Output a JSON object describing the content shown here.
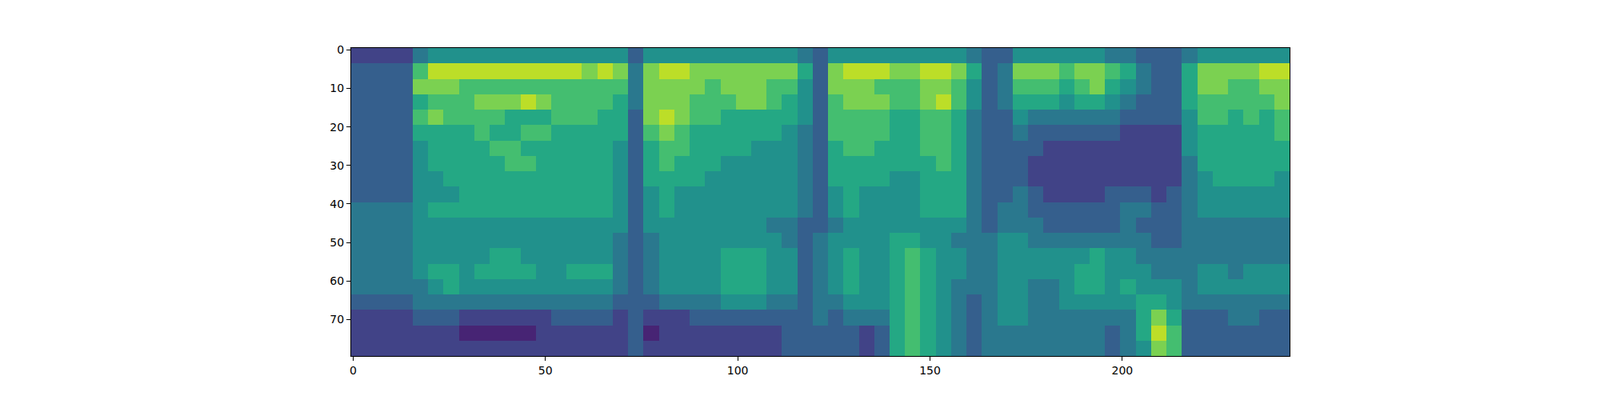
{
  "chart_data": {
    "type": "heatmap",
    "color": "Viridis",
    "color_range": [
      0,
      10
    ],
    "xlim": [
      -0.5,
      243.5
    ],
    "xticks": [
      0,
      50,
      100,
      150,
      200
    ],
    "ylim": [
      79.5,
      -0.5
    ],
    "yticks": [
      0,
      10,
      20,
      30,
      40,
      50,
      60,
      70
    ],
    "x": [
      1.5,
      5.5,
      9.5,
      13.5,
      17.5,
      21.5,
      25.5,
      29.5,
      33.5,
      37.5,
      41.5,
      45.5,
      49.5,
      53.5,
      57.5,
      61.5,
      65.5,
      69.5,
      73.5,
      77.5,
      81.5,
      85.5,
      89.5,
      93.5,
      97.5,
      101.5,
      105.5,
      109.5,
      113.5,
      117.5,
      121.5,
      125.5,
      129.5,
      133.5,
      137.5,
      141.5,
      145.5,
      149.5,
      153.5,
      157.5,
      161.5,
      165.5,
      169.5,
      173.5,
      177.5,
      181.5,
      185.5,
      189.5,
      193.5,
      197.5,
      201.5,
      205.5,
      209.5,
      213.5,
      217.5,
      221.5,
      225.5,
      229.5,
      233.5,
      237.5,
      241.5
    ],
    "y": [
      1.5,
      5.5,
      9.5,
      13.5,
      17.5,
      21.5,
      25.5,
      29.5,
      33.5,
      37.5,
      41.5,
      45.5,
      49.5,
      53.5,
      57.5,
      61.5,
      65.5,
      69.5,
      73.5,
      77.5
    ],
    "cells": [
      [
        2,
        2,
        2,
        2,
        4,
        5,
        5,
        5,
        5,
        5,
        5,
        5,
        5,
        5,
        5,
        5,
        5,
        5,
        3,
        5,
        5,
        5,
        5,
        5,
        5,
        5,
        5,
        5,
        5,
        4,
        3,
        5,
        5,
        5,
        5,
        5,
        5,
        5,
        5,
        5,
        4,
        3,
        3,
        5,
        5,
        5,
        5,
        5,
        5,
        4,
        4,
        3,
        3,
        3,
        4,
        5,
        5,
        5,
        5,
        5,
        5
      ],
      [
        3,
        3,
        3,
        3,
        7,
        9,
        9,
        9,
        9,
        9,
        9,
        9,
        9,
        9,
        9,
        8,
        9,
        8,
        4,
        8,
        9,
        9,
        8,
        8,
        8,
        8,
        8,
        8,
        8,
        6,
        3,
        8,
        9,
        9,
        9,
        8,
        8,
        9,
        9,
        8,
        6,
        3,
        4,
        8,
        8,
        8,
        7,
        8,
        8,
        7,
        6,
        4,
        3,
        3,
        6,
        8,
        8,
        8,
        8,
        9,
        9
      ],
      [
        3,
        3,
        3,
        3,
        8,
        8,
        8,
        7,
        7,
        7,
        7,
        7,
        7,
        7,
        7,
        7,
        7,
        7,
        4,
        8,
        8,
        8,
        8,
        7,
        8,
        8,
        8,
        7,
        7,
        5,
        3,
        8,
        8,
        8,
        7,
        7,
        7,
        8,
        8,
        7,
        5,
        3,
        4,
        7,
        7,
        7,
        6,
        7,
        8,
        6,
        5,
        4,
        3,
        3,
        6,
        8,
        8,
        7,
        7,
        8,
        8
      ],
      [
        3,
        3,
        3,
        3,
        6,
        7,
        7,
        7,
        8,
        8,
        8,
        9,
        8,
        7,
        7,
        7,
        7,
        6,
        4,
        8,
        8,
        8,
        7,
        7,
        7,
        8,
        8,
        7,
        6,
        5,
        3,
        7,
        8,
        8,
        8,
        7,
        7,
        8,
        9,
        7,
        5,
        3,
        4,
        6,
        6,
        6,
        5,
        6,
        6,
        5,
        4,
        3,
        3,
        3,
        6,
        7,
        7,
        7,
        7,
        7,
        8
      ],
      [
        3,
        3,
        3,
        3,
        7,
        8,
        7,
        7,
        7,
        7,
        6,
        6,
        6,
        7,
        7,
        7,
        6,
        6,
        3,
        8,
        9,
        8,
        7,
        7,
        6,
        6,
        6,
        6,
        6,
        5,
        3,
        7,
        7,
        7,
        7,
        6,
        6,
        7,
        7,
        6,
        4,
        3,
        3,
        5,
        4,
        4,
        4,
        4,
        4,
        4,
        3,
        3,
        3,
        3,
        5,
        7,
        7,
        6,
        7,
        6,
        7
      ],
      [
        3,
        3,
        3,
        3,
        6,
        6,
        6,
        6,
        7,
        6,
        6,
        7,
        7,
        6,
        6,
        6,
        6,
        6,
        3,
        7,
        8,
        7,
        6,
        6,
        6,
        6,
        6,
        6,
        5,
        4,
        3,
        7,
        7,
        7,
        7,
        6,
        6,
        7,
        7,
        6,
        4,
        3,
        3,
        4,
        3,
        3,
        3,
        3,
        3,
        3,
        2,
        2,
        2,
        2,
        5,
        6,
        6,
        6,
        6,
        6,
        7
      ],
      [
        3,
        3,
        3,
        3,
        5,
        6,
        6,
        6,
        6,
        7,
        7,
        6,
        6,
        6,
        6,
        6,
        6,
        5,
        3,
        6,
        7,
        7,
        6,
        6,
        6,
        6,
        5,
        5,
        5,
        4,
        3,
        6,
        7,
        7,
        6,
        6,
        6,
        7,
        7,
        6,
        4,
        3,
        3,
        3,
        3,
        2,
        2,
        2,
        2,
        2,
        2,
        2,
        2,
        2,
        5,
        6,
        6,
        6,
        6,
        6,
        6
      ],
      [
        3,
        3,
        3,
        3,
        5,
        6,
        6,
        6,
        6,
        6,
        7,
        7,
        6,
        6,
        6,
        6,
        6,
        5,
        3,
        6,
        7,
        6,
        6,
        6,
        5,
        5,
        5,
        5,
        5,
        4,
        3,
        6,
        6,
        6,
        6,
        6,
        6,
        6,
        7,
        6,
        4,
        3,
        3,
        3,
        2,
        2,
        2,
        2,
        2,
        2,
        2,
        2,
        2,
        2,
        4,
        6,
        6,
        6,
        6,
        6,
        6
      ],
      [
        3,
        3,
        3,
        3,
        5,
        5,
        6,
        6,
        6,
        6,
        6,
        6,
        6,
        6,
        6,
        6,
        6,
        5,
        3,
        6,
        6,
        6,
        6,
        5,
        5,
        5,
        5,
        5,
        5,
        4,
        3,
        6,
        6,
        6,
        6,
        5,
        5,
        6,
        6,
        6,
        4,
        3,
        3,
        3,
        2,
        2,
        2,
        2,
        2,
        2,
        2,
        2,
        2,
        2,
        4,
        5,
        6,
        6,
        6,
        6,
        5
      ],
      [
        3,
        3,
        3,
        3,
        5,
        5,
        5,
        6,
        6,
        6,
        6,
        6,
        6,
        6,
        6,
        6,
        6,
        5,
        3,
        5,
        6,
        5,
        5,
        5,
        5,
        5,
        5,
        5,
        5,
        4,
        3,
        5,
        6,
        5,
        5,
        5,
        5,
        6,
        6,
        6,
        4,
        3,
        3,
        4,
        3,
        2,
        2,
        2,
        2,
        3,
        3,
        3,
        2,
        3,
        4,
        5,
        5,
        5,
        5,
        5,
        5
      ],
      [
        4,
        4,
        4,
        4,
        5,
        6,
        6,
        6,
        6,
        6,
        6,
        6,
        6,
        6,
        6,
        6,
        6,
        5,
        3,
        5,
        6,
        5,
        5,
        5,
        5,
        5,
        5,
        5,
        5,
        4,
        3,
        5,
        6,
        5,
        5,
        5,
        5,
        6,
        6,
        6,
        4,
        3,
        4,
        4,
        3,
        3,
        3,
        3,
        3,
        3,
        4,
        4,
        3,
        3,
        4,
        5,
        5,
        5,
        5,
        5,
        5
      ],
      [
        4,
        4,
        4,
        4,
        5,
        5,
        5,
        5,
        5,
        5,
        5,
        5,
        5,
        5,
        5,
        5,
        5,
        5,
        3,
        5,
        5,
        5,
        5,
        5,
        5,
        5,
        5,
        4,
        4,
        3,
        3,
        4,
        5,
        5,
        5,
        5,
        5,
        5,
        5,
        5,
        4,
        3,
        4,
        4,
        4,
        3,
        3,
        3,
        3,
        3,
        4,
        3,
        3,
        3,
        4,
        4,
        4,
        4,
        4,
        4,
        4
      ],
      [
        4,
        4,
        4,
        4,
        5,
        5,
        5,
        5,
        5,
        5,
        5,
        5,
        5,
        5,
        5,
        5,
        5,
        4,
        3,
        4,
        5,
        5,
        5,
        5,
        5,
        5,
        5,
        5,
        4,
        3,
        4,
        5,
        5,
        5,
        5,
        6,
        6,
        5,
        5,
        4,
        4,
        4,
        5,
        5,
        4,
        4,
        4,
        4,
        4,
        4,
        4,
        4,
        3,
        3,
        4,
        4,
        4,
        4,
        4,
        4,
        4
      ],
      [
        4,
        4,
        4,
        4,
        5,
        5,
        5,
        5,
        5,
        6,
        6,
        5,
        5,
        5,
        5,
        5,
        5,
        4,
        3,
        4,
        5,
        5,
        5,
        5,
        6,
        6,
        6,
        5,
        5,
        3,
        4,
        5,
        6,
        5,
        5,
        6,
        7,
        6,
        5,
        5,
        4,
        4,
        5,
        5,
        5,
        5,
        5,
        5,
        6,
        5,
        5,
        4,
        4,
        4,
        4,
        4,
        4,
        4,
        4,
        4,
        4
      ],
      [
        4,
        4,
        4,
        4,
        5,
        6,
        6,
        5,
        6,
        6,
        6,
        6,
        5,
        5,
        6,
        6,
        6,
        4,
        3,
        4,
        5,
        5,
        5,
        5,
        6,
        6,
        6,
        5,
        5,
        3,
        4,
        5,
        6,
        5,
        5,
        6,
        7,
        6,
        5,
        5,
        4,
        4,
        5,
        5,
        5,
        5,
        5,
        6,
        6,
        5,
        5,
        5,
        4,
        4,
        4,
        5,
        5,
        4,
        5,
        5,
        5
      ],
      [
        4,
        4,
        4,
        4,
        4,
        5,
        6,
        5,
        5,
        5,
        5,
        5,
        5,
        5,
        5,
        5,
        5,
        4,
        3,
        4,
        5,
        5,
        5,
        5,
        6,
        6,
        6,
        5,
        5,
        3,
        4,
        5,
        6,
        5,
        5,
        6,
        7,
        6,
        5,
        4,
        4,
        4,
        5,
        5,
        4,
        4,
        5,
        6,
        6,
        5,
        6,
        5,
        5,
        5,
        4,
        5,
        5,
        5,
        5,
        5,
        5
      ],
      [
        3,
        3,
        3,
        3,
        4,
        4,
        4,
        4,
        4,
        4,
        4,
        4,
        4,
        4,
        4,
        4,
        4,
        3,
        3,
        3,
        4,
        4,
        4,
        4,
        5,
        5,
        5,
        4,
        4,
        3,
        4,
        4,
        5,
        5,
        5,
        6,
        7,
        6,
        5,
        4,
        3,
        4,
        5,
        5,
        4,
        4,
        5,
        5,
        5,
        5,
        5,
        6,
        6,
        5,
        4,
        4,
        4,
        4,
        4,
        4,
        4
      ],
      [
        2,
        2,
        2,
        2,
        3,
        3,
        3,
        2,
        2,
        2,
        2,
        2,
        2,
        3,
        3,
        3,
        3,
        2,
        3,
        2,
        2,
        2,
        3,
        3,
        3,
        3,
        3,
        3,
        3,
        3,
        4,
        3,
        4,
        4,
        4,
        6,
        7,
        6,
        5,
        4,
        3,
        4,
        5,
        5,
        4,
        4,
        4,
        4,
        4,
        4,
        4,
        6,
        8,
        6,
        3,
        3,
        3,
        4,
        4,
        3,
        3
      ],
      [
        2,
        2,
        2,
        2,
        2,
        2,
        2,
        1,
        1,
        1,
        1,
        1,
        2,
        2,
        2,
        2,
        2,
        2,
        3,
        1,
        2,
        2,
        2,
        2,
        2,
        2,
        2,
        2,
        3,
        3,
        3,
        3,
        3,
        2,
        3,
        6,
        7,
        6,
        5,
        4,
        3,
        4,
        4,
        4,
        4,
        4,
        4,
        4,
        4,
        3,
        4,
        6,
        9,
        7,
        3,
        3,
        3,
        3,
        3,
        3,
        3
      ],
      [
        2,
        2,
        2,
        2,
        2,
        2,
        2,
        2,
        2,
        2,
        2,
        2,
        2,
        2,
        2,
        2,
        2,
        2,
        3,
        2,
        2,
        2,
        2,
        2,
        2,
        2,
        2,
        2,
        3,
        3,
        3,
        3,
        3,
        2,
        3,
        6,
        7,
        6,
        5,
        4,
        3,
        4,
        4,
        4,
        4,
        4,
        4,
        4,
        4,
        3,
        4,
        5,
        8,
        7,
        3,
        3,
        3,
        3,
        3,
        3,
        3
      ]
    ]
  }
}
